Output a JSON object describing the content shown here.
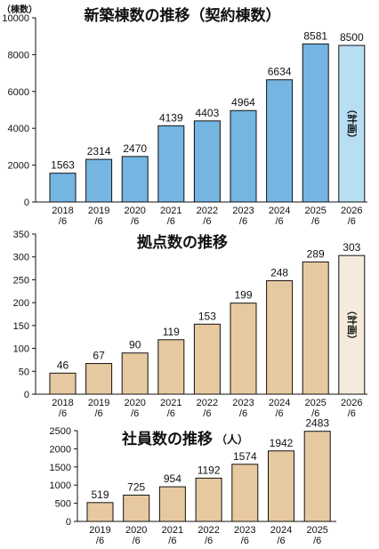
{
  "chart_data": [
    {
      "type": "bar",
      "title": "新築棟数の推移（契約棟数）",
      "unit_label": "（棟数）",
      "categories": [
        "2018\n/6",
        "2019\n/6",
        "2020\n/6",
        "2021\n/6",
        "2022\n/6",
        "2023\n/6",
        "2024\n/6",
        "2025\n/6",
        "2026\n/6"
      ],
      "values": [
        1563,
        2314,
        2470,
        4139,
        4403,
        4964,
        6634,
        8581,
        8500
      ],
      "ylim": [
        0,
        10000
      ],
      "yticks": [
        0,
        2000,
        4000,
        6000,
        8000,
        10000
      ],
      "colors": {
        "actual": "#75b5e2",
        "plan": "#b8def3"
      },
      "plan_note": "（計画）",
      "plan_index": 8,
      "grid": false
    },
    {
      "type": "bar",
      "title": "拠点数の推移",
      "categories": [
        "2018\n/6",
        "2019\n/6",
        "2020\n/6",
        "2021\n/6",
        "2022\n/6",
        "2023\n/6",
        "2024\n/6",
        "2025\n/6",
        "2026\n/6"
      ],
      "values": [
        46,
        67,
        90,
        119,
        153,
        199,
        248,
        289,
        303
      ],
      "ylim": [
        0,
        350
      ],
      "yticks": [
        0,
        50,
        100,
        150,
        200,
        250,
        300,
        350
      ],
      "colors": {
        "actual": "#e7c9a1",
        "plan": "#f5ebdc"
      },
      "plan_note": "（計画）",
      "plan_index": 8,
      "grid": false
    },
    {
      "type": "bar",
      "title": "社員数の推移",
      "unit_label": "（人）",
      "categories": [
        "2019\n/6",
        "2020\n/6",
        "2021\n/6",
        "2022\n/6",
        "2023\n/6",
        "2024\n/6",
        "2025\n/6"
      ],
      "values": [
        519,
        725,
        954,
        1192,
        1574,
        1942,
        2483
      ],
      "ylim": [
        0,
        2500
      ],
      "yticks": [
        0,
        500,
        1000,
        1500,
        2000,
        2500
      ],
      "colors": {
        "actual": "#e7c9a1"
      },
      "grid": false
    }
  ]
}
